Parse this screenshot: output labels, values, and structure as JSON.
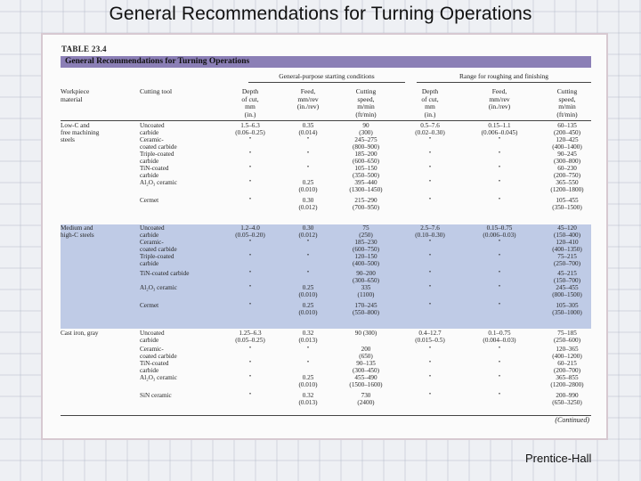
{
  "slide": {
    "title": "General Recommendations for Turning Operations",
    "credit": "Prentice-Hall"
  },
  "table": {
    "label": "TABLE 23.4",
    "title": "General Recommendations for Turning Operations",
    "group_general": "General-purpose starting conditions",
    "group_range": "Range for roughing and finishing",
    "col_material": "Workpiece\nmaterial",
    "col_tool": "Cutting tool",
    "col_doc": "Depth\nof cut,\nmm\n(in.)",
    "col_feed": "Feed,\nmm/rev\n(in./rev)",
    "col_speed": "Cutting\nspeed,\nm/min\n(ft/min)",
    "continued": "(Continued)",
    "rows": [
      {
        "material": "Low-C and\nfree machining\nsteels",
        "tool": "Uncoated\ncarbide",
        "doc": "1.5–6.3\n(0.06–0.25)",
        "feed": "0.35\n(0.014)",
        "speed": "90\n(300)",
        "rdoc": "0.5–7.6\n(0.02–0.30)",
        "rfeed": "0.15–1.1\n(0.006–0.045)",
        "rspeed": "60–135\n(200–450)"
      },
      {
        "material": "",
        "tool": "Ceramic-\ncoated carbide",
        "doc": "\"",
        "feed": "\"",
        "speed": "245–275\n(800–900)",
        "rdoc": "\"",
        "rfeed": "\"",
        "rspeed": "120–425\n(400–1400)"
      },
      {
        "material": "",
        "tool": "Triple-coated\ncarbide",
        "doc": "\"",
        "feed": "\"",
        "speed": "185–200\n(600–650)",
        "rdoc": "\"",
        "rfeed": "\"",
        "rspeed": "90–245\n(300–800)"
      },
      {
        "material": "",
        "tool": "TiN-coated\ncarbide",
        "doc": "\"",
        "feed": "\"",
        "speed": "105–150\n(350–500)",
        "rdoc": "\"",
        "rfeed": "\"",
        "rspeed": "60–230\n(200–750)"
      },
      {
        "material": "",
        "tool": "Al₂O₃ ceramic",
        "doc": "\"",
        "feed": "0.25\n(0.010)",
        "speed": "395–440\n(1300–1450)",
        "rdoc": "\"",
        "rfeed": "\"",
        "rspeed": "365–550\n(1200–1800)"
      },
      {
        "material": "",
        "tool": "Cermet",
        "doc": "\"",
        "feed": "0.30\n(0.012)",
        "speed": "215–290\n(700–950)",
        "rdoc": "\"",
        "rfeed": "\"",
        "rspeed": "105–455\n(350–1500)"
      },
      {
        "material": "Medium and\nhigh-C steels",
        "tool": "Uncoated\ncarbide",
        "doc": "1.2–4.0\n(0.05–0.20)",
        "feed": "0.30\n(0.012)",
        "speed": "75\n(250)",
        "rdoc": "2.5–7.6\n(0.10–0.30)",
        "rfeed": "0.15–0.75\n(0.006–0.03)",
        "rspeed": "45–120\n(150–400)"
      },
      {
        "material": "",
        "tool": "Ceramic-\ncoated carbide",
        "doc": "\"",
        "feed": "\"",
        "speed": "185–230\n(600–750)",
        "rdoc": "\"",
        "rfeed": "\"",
        "rspeed": "120–410\n(400–1350)"
      },
      {
        "material": "",
        "tool": "Triple-coated\ncarbide",
        "doc": "\"",
        "feed": "\"",
        "speed": "120–150\n(400–500)",
        "rdoc": "\"",
        "rfeed": "\"",
        "rspeed": "75–215\n(250–700)"
      },
      {
        "material": "",
        "tool": "TiN-coated carbide",
        "doc": "\"",
        "feed": "\"",
        "speed": "90–200\n(300–650)",
        "rdoc": "\"",
        "rfeed": "\"",
        "rspeed": "45–215\n(150–700)"
      },
      {
        "material": "",
        "tool": "Al₂O₃ ceramic",
        "doc": "\"",
        "feed": "0.25\n(0.010)",
        "speed": "335\n(1100)",
        "rdoc": "\"",
        "rfeed": "\"",
        "rspeed": "245–455\n(800–1500)"
      },
      {
        "material": "",
        "tool": "Cermet",
        "doc": "\"",
        "feed": "0.25\n(0.010)",
        "speed": "170–245\n(550–800)",
        "rdoc": "\"",
        "rfeed": "\"",
        "rspeed": "105–305\n(350–1000)"
      },
      {
        "material": "Cast iron, gray",
        "tool": "Uncoated\ncarbide",
        "doc": "1.25–6.3\n(0.05–0.25)",
        "feed": "0.32\n(0.013)",
        "speed": "90 (300)",
        "rdoc": "0.4–12.7\n(0.015–0.5)",
        "rfeed": "0.1–0.75\n(0.004–0.03)",
        "rspeed": "75–185\n(250–600)"
      },
      {
        "material": "",
        "tool": "Ceramic-\ncoated carbide",
        "doc": "\"",
        "feed": "\"",
        "speed": "200\n(650)",
        "rdoc": "\"",
        "rfeed": "\"",
        "rspeed": "120–365\n(400–1200)"
      },
      {
        "material": "",
        "tool": "TiN-coated\ncarbide",
        "doc": "\"",
        "feed": "\"",
        "speed": "90–135\n(300–450)",
        "rdoc": "\"",
        "rfeed": "\"",
        "rspeed": "60–215\n(200–700)"
      },
      {
        "material": "",
        "tool": "Al₂O₃ ceramic",
        "doc": "\"",
        "feed": "0.25\n(0.010)",
        "speed": "455–490\n(1500–1600)",
        "rdoc": "\"",
        "rfeed": "\"",
        "rspeed": "365–855\n(1200–2800)"
      },
      {
        "material": "",
        "tool": "SiN ceramic",
        "doc": "\"",
        "feed": "0.32\n(0.013)",
        "speed": "730\n(2400)",
        "rdoc": "\"",
        "rfeed": "\"",
        "rspeed": "200–990\n(650–3250)"
      }
    ]
  }
}
